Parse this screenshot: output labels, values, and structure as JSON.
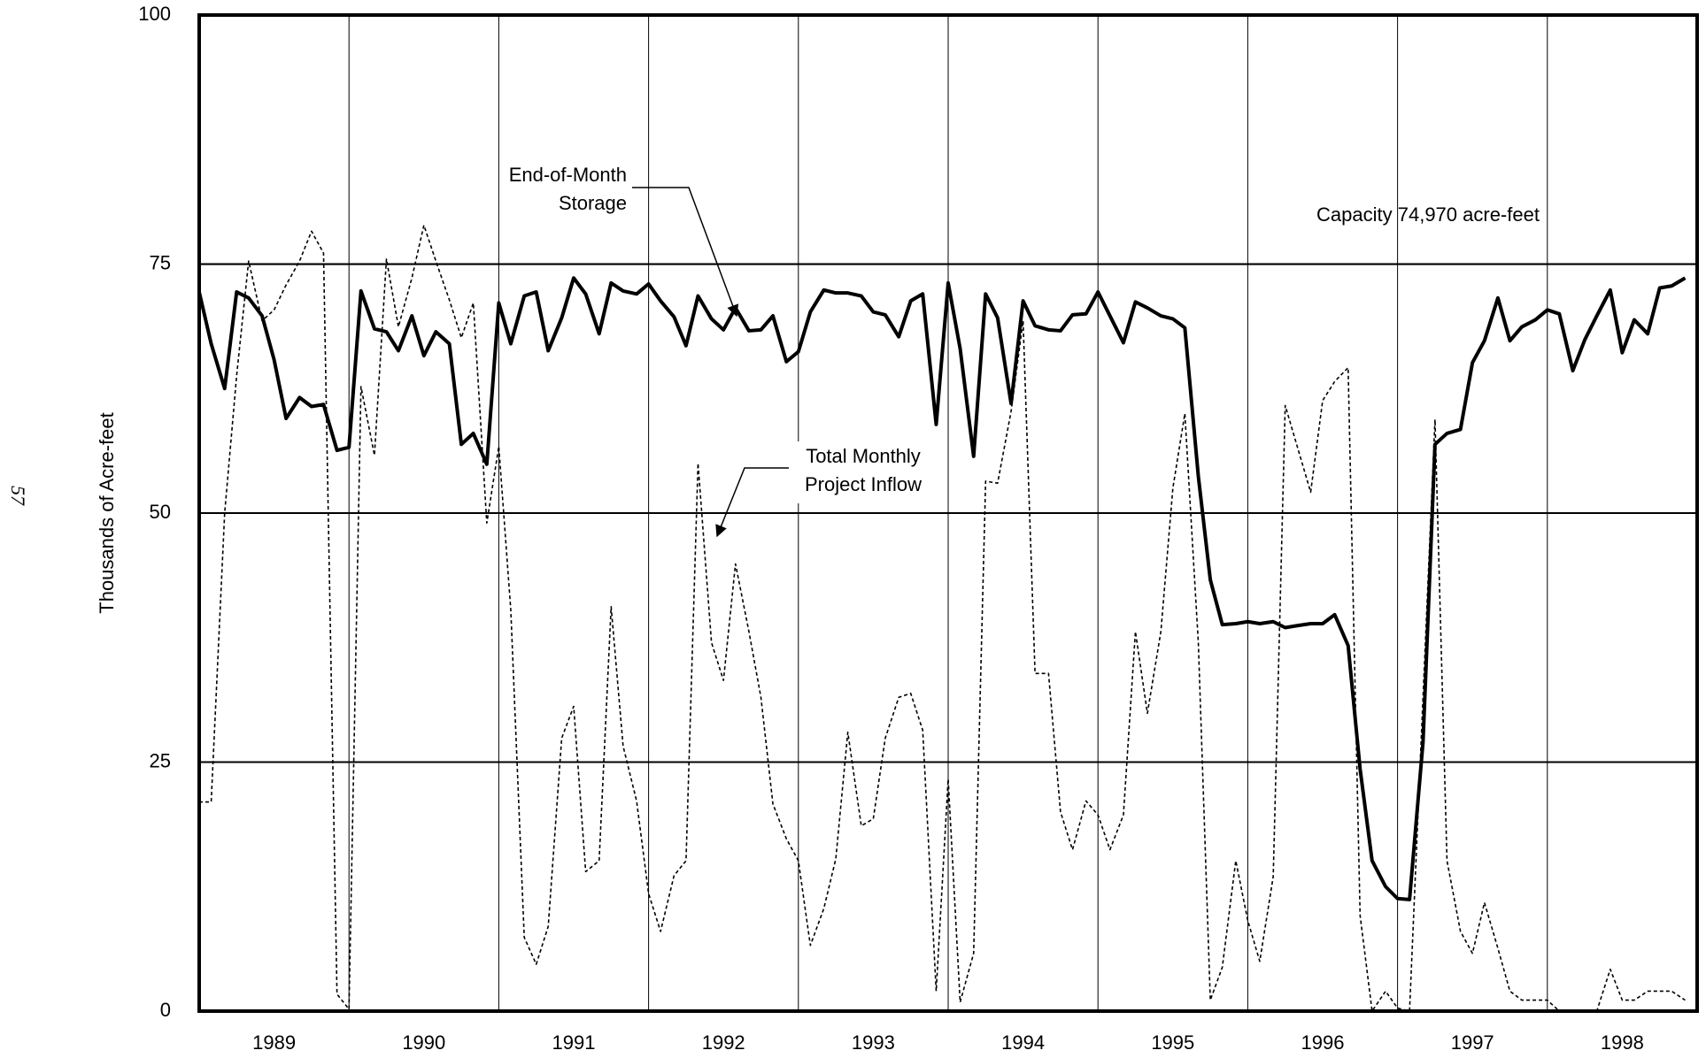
{
  "page_number": "57",
  "chart_data": {
    "type": "line",
    "y_label": "Thousands of Acre-feet",
    "x": [
      1989,
      1989.08,
      1989.17,
      1989.25,
      1989.33,
      1989.42,
      1989.5,
      1989.58,
      1989.67,
      1989.75,
      1989.83,
      1989.92,
      1990,
      1990.08,
      1990.17,
      1990.25,
      1990.33,
      1990.42,
      1990.5,
      1990.58,
      1990.67,
      1990.75,
      1990.83,
      1990.92,
      1991,
      1991.08,
      1991.17,
      1991.25,
      1991.33,
      1991.42,
      1991.5,
      1991.58,
      1991.67,
      1991.75,
      1991.83,
      1991.92,
      1992,
      1992.08,
      1992.17,
      1992.25,
      1992.33,
      1992.42,
      1992.5,
      1992.58,
      1992.67,
      1992.75,
      1992.83,
      1992.92,
      1993,
      1993.08,
      1993.17,
      1993.25,
      1993.33,
      1993.42,
      1993.5,
      1993.58,
      1993.67,
      1993.75,
      1993.83,
      1993.92,
      1994,
      1994.08,
      1994.17,
      1994.25,
      1994.33,
      1994.42,
      1994.5,
      1994.58,
      1994.67,
      1994.75,
      1994.83,
      1994.92,
      1995,
      1995.08,
      1995.17,
      1995.25,
      1995.33,
      1995.42,
      1995.5,
      1995.58,
      1995.67,
      1995.75,
      1995.83,
      1995.92,
      1996,
      1996.08,
      1996.17,
      1996.25,
      1996.33,
      1996.42,
      1996.5,
      1996.58,
      1996.67,
      1996.75,
      1996.83,
      1996.92,
      1997,
      1997.08,
      1997.17,
      1997.25,
      1997.33,
      1997.42,
      1997.5,
      1997.58,
      1997.67,
      1997.75,
      1997.83,
      1997.92,
      1998,
      1998.08,
      1998.17,
      1998.25,
      1998.33,
      1998.42,
      1998.5,
      1998.58,
      1998.67,
      1998.75,
      1998.83,
      1998.92
    ],
    "series": [
      {
        "name": "End-of-Month Storage",
        "color": "#000000",
        "line_style": "solid",
        "values": [
          72.2,
          67,
          62.5,
          72.2,
          71.6,
          69.8,
          65.4,
          59.5,
          61.6,
          60.7,
          60.9,
          56.3,
          56.6,
          72.3,
          68.5,
          68.2,
          66.3,
          69.8,
          65.8,
          68.2,
          67,
          56.9,
          58,
          54.9,
          71.1,
          67,
          71.8,
          72.2,
          66.3,
          69.6,
          73.6,
          72,
          68,
          73.1,
          72.3,
          72,
          73,
          71.3,
          69.7,
          66.8,
          71.8,
          69.5,
          68.4,
          70.6,
          68.3,
          68.4,
          69.8,
          65.2,
          66.2,
          70.2,
          72.4,
          72.1,
          72.1,
          71.8,
          70.2,
          69.9,
          67.7,
          71.3,
          72,
          58.9,
          73.1,
          66.5,
          55.7,
          72,
          69.6,
          61,
          71.3,
          68.8,
          68.4,
          68.3,
          69.9,
          70,
          72.2,
          69.8,
          67.1,
          71.2,
          70.6,
          69.8,
          69.5,
          68.6,
          53.7,
          43.3,
          38.8,
          38.9,
          39.1,
          38.9,
          39.1,
          38.5,
          38.7,
          38.9,
          38.9,
          39.8,
          36.7,
          24.3,
          15.1,
          12.5,
          11.3,
          11.2,
          27,
          56.9,
          58,
          58.4,
          65.1,
          67.3,
          71.6,
          67.3,
          68.7,
          69.4,
          70.4,
          70,
          64.3,
          67.4,
          69.8,
          72.4,
          66.1,
          69.4,
          68,
          72.6,
          72.8,
          73.6
        ]
      },
      {
        "name": "Total Monthly Project Inflow",
        "color": "#000000",
        "line_style": "dotted",
        "values": [
          21,
          21,
          50,
          63.8,
          75.3,
          69.3,
          70.4,
          72.9,
          75.3,
          78.3,
          76.1,
          1.7,
          0.2,
          62.7,
          55.8,
          75.5,
          68.7,
          73.6,
          78.9,
          75.3,
          71.4,
          67.6,
          71.1,
          49,
          56.7,
          40.3,
          7.4,
          4.7,
          8.5,
          27.4,
          30.6,
          14,
          15.1,
          40.6,
          26.6,
          21.1,
          11.8,
          8,
          13.6,
          15.1,
          55,
          37,
          33.2,
          44.9,
          38.1,
          31.5,
          20.8,
          17.3,
          15.1,
          6.6,
          10.3,
          15.3,
          28,
          18.6,
          19.3,
          27.4,
          31.5,
          31.9,
          28.2,
          2,
          23.3,
          0.9,
          5.8,
          53.2,
          53,
          60.2,
          69.3,
          33.9,
          33.9,
          20,
          16.2,
          21.1,
          19.7,
          16.2,
          19.7,
          38.1,
          29.9,
          38.1,
          52.5,
          60,
          37,
          1.1,
          4.4,
          15.1,
          9.1,
          5,
          13.5,
          60.8,
          56.7,
          52.1,
          61.3,
          63.2,
          64.6,
          9.6,
          0,
          2,
          0.3,
          0,
          31.5,
          59.4,
          15.1,
          8,
          5.8,
          10.9,
          6.3,
          2,
          1.1,
          1.1,
          1.1,
          0,
          0,
          0,
          0,
          4.2,
          1.1,
          1.1,
          2,
          2,
          2,
          1.1
        ]
      }
    ],
    "series_labels": [
      [
        "End-of-Month",
        "Storage"
      ],
      [
        "Total Monthly",
        "Project Inflow"
      ]
    ],
    "capacity": 74.97,
    "capacity_label": "Capacity 74,970 acre-feet",
    "xlim": [
      1989,
      1999
    ],
    "xticks": [
      {
        "value": 1989,
        "label": "1989"
      },
      {
        "value": 1990,
        "label": "1990"
      },
      {
        "value": 1991,
        "label": "1991"
      },
      {
        "value": 1992,
        "label": "1992"
      },
      {
        "value": 1993,
        "label": "1993"
      },
      {
        "value": 1994,
        "label": "1994"
      },
      {
        "value": 1995,
        "label": "1995"
      },
      {
        "value": 1996,
        "label": "1996"
      },
      {
        "value": 1997,
        "label": "1997"
      },
      {
        "value": 1998,
        "label": "1998"
      }
    ],
    "ylim": [
      0,
      100
    ],
    "yticks": [
      0,
      25,
      50,
      75,
      100
    ],
    "grid": true
  }
}
